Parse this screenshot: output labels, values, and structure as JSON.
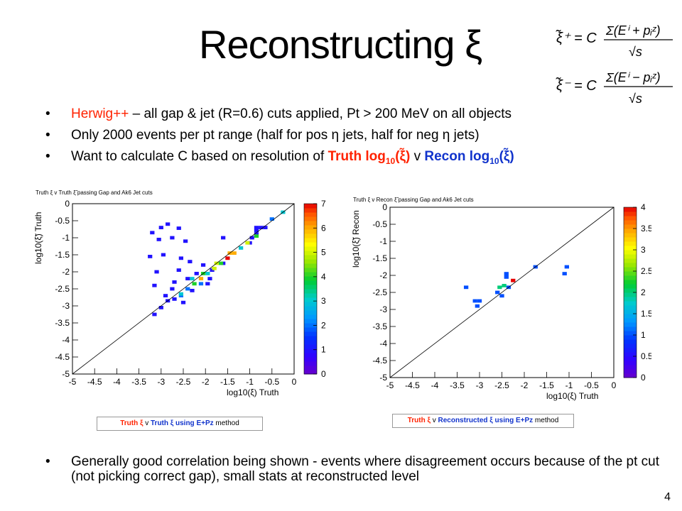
{
  "slide": {
    "title": "Reconstructing ξ",
    "page_number": "4",
    "formula_plus": "ξ̃⁺ = C Σ(Eⁱ + pᵢᶻ) / √s",
    "formula_minus": "ξ̃⁻ = C Σ(Eⁱ − pᵢᶻ) / √s",
    "bullet1_red": "Herwig++",
    "bullet1_rest": " – all gap & jet (R=0.6) cuts applied, Pt > 200 MeV on all objects",
    "bullet2": "Only 2000 events per pt range (half for pos η jets, half for neg η jets)",
    "bullet3_pre": "Want to calculate C based on resolution of ",
    "bullet3_truth": "Truth log",
    "bullet3_sub": "10",
    "bullet3_xi": "(ξ̃)",
    "bullet3_v": " v ",
    "bullet3_recon": "Recon log",
    "bottom_bullet": "Generally good correlation being shown - events where disagreement occurs because of the pt cut (not picking correct gap), small stats at reconstructed level",
    "caption_left": {
      "part1": "Truth ξ",
      "part2": " v ",
      "part3": "Truth ξ using E+Pz",
      "part4": " method"
    },
    "caption_right": {
      "part1": "Truth ξ",
      "part2": " v ",
      "part3": "Reconstructed ξ using E+Pz",
      "part4": " method"
    }
  },
  "chart_data": [
    {
      "type": "heatmap",
      "title": "Truth ξ v Truth ξ̃ passing Gap and Ak6 Jet cuts",
      "xlabel": "log10(ξ) Truth",
      "ylabel": "log10(ξ̃) Truth",
      "xlim": [
        -5,
        0
      ],
      "ylim": [
        -5,
        0
      ],
      "zlim": [
        0,
        7
      ],
      "x_ticks": [
        "-5",
        "-4.5",
        "-4",
        "-3.5",
        "-3",
        "-2.5",
        "-2",
        "-1.5",
        "-1",
        "-0.5",
        "0"
      ],
      "y_ticks": [
        "-5",
        "-4.5",
        "-4",
        "-3.5",
        "-3",
        "-2.5",
        "-2",
        "-1.5",
        "-1",
        "-0.5",
        "0"
      ],
      "z_ticks": [
        "0",
        "1",
        "2",
        "3",
        "4",
        "5",
        "6",
        "7"
      ],
      "diagonal": true,
      "cells": [
        {
          "x": -3.2,
          "y": -0.85,
          "z": 1
        },
        {
          "x": -3.0,
          "y": -0.7,
          "z": 1
        },
        {
          "x": -2.85,
          "y": -0.6,
          "z": 1
        },
        {
          "x": -2.6,
          "y": -0.72,
          "z": 1
        },
        {
          "x": -3.05,
          "y": -1.05,
          "z": 1
        },
        {
          "x": -2.75,
          "y": -1.0,
          "z": 1
        },
        {
          "x": -2.45,
          "y": -1.1,
          "z": 1
        },
        {
          "x": -1.6,
          "y": -1.0,
          "z": 1
        },
        {
          "x": -3.25,
          "y": -1.55,
          "z": 1
        },
        {
          "x": -2.95,
          "y": -1.5,
          "z": 1
        },
        {
          "x": -3.1,
          "y": -2.0,
          "z": 1
        },
        {
          "x": -3.15,
          "y": -2.4,
          "z": 1
        },
        {
          "x": -2.9,
          "y": -2.7,
          "z": 1
        },
        {
          "x": -3.0,
          "y": -3.05,
          "z": 1
        },
        {
          "x": -3.15,
          "y": -3.25,
          "z": 1
        },
        {
          "x": -2.55,
          "y": -1.6,
          "z": 1
        },
        {
          "x": -2.35,
          "y": -1.7,
          "z": 1
        },
        {
          "x": -2.6,
          "y": -1.95,
          "z": 1
        },
        {
          "x": -2.4,
          "y": -2.2,
          "z": 1
        },
        {
          "x": -2.2,
          "y": -2.05,
          "z": 1
        },
        {
          "x": -2.05,
          "y": -1.8,
          "z": 1
        },
        {
          "x": -2.75,
          "y": -2.5,
          "z": 1
        },
        {
          "x": -2.55,
          "y": -2.7,
          "z": 2
        },
        {
          "x": -2.85,
          "y": -2.85,
          "z": 1
        },
        {
          "x": -2.5,
          "y": -2.9,
          "z": 1
        },
        {
          "x": -2.7,
          "y": -2.3,
          "z": 1
        },
        {
          "x": -2.3,
          "y": -2.55,
          "z": 1
        },
        {
          "x": -1.9,
          "y": -2.2,
          "z": 1
        },
        {
          "x": -1.85,
          "y": -1.95,
          "z": 1
        },
        {
          "x": -0.85,
          "y": -0.7,
          "z": 1
        },
        {
          "x": -0.75,
          "y": -0.7,
          "z": 1
        },
        {
          "x": -0.65,
          "y": -0.7,
          "z": 1
        },
        {
          "x": -0.85,
          "y": -0.8,
          "z": 1
        },
        {
          "x": -0.85,
          "y": -0.9,
          "z": 1
        },
        {
          "x": -0.95,
          "y": -1.0,
          "z": 1
        },
        {
          "x": -1.0,
          "y": -1.15,
          "z": 1
        },
        {
          "x": -1.6,
          "y": -1.75,
          "z": 1
        },
        {
          "x": -1.95,
          "y": -2.35,
          "z": 1
        },
        {
          "x": -0.25,
          "y": -0.25,
          "z": 3
        },
        {
          "x": -0.5,
          "y": -0.45,
          "z": 2
        },
        {
          "x": -0.85,
          "y": -0.95,
          "z": 4
        },
        {
          "x": -1.05,
          "y": -1.15,
          "z": 5
        },
        {
          "x": -1.2,
          "y": -1.3,
          "z": 3
        },
        {
          "x": -1.35,
          "y": -1.45,
          "z": 6
        },
        {
          "x": -1.5,
          "y": -1.6,
          "z": 7
        },
        {
          "x": -1.65,
          "y": -1.75,
          "z": 4
        },
        {
          "x": -1.8,
          "y": -1.9,
          "z": 5
        },
        {
          "x": -1.95,
          "y": -2.05,
          "z": 3
        },
        {
          "x": -2.1,
          "y": -2.2,
          "z": 6
        },
        {
          "x": -2.25,
          "y": -2.35,
          "z": 4
        },
        {
          "x": -2.4,
          "y": -2.5,
          "z": 2
        },
        {
          "x": -2.55,
          "y": -2.65,
          "z": 3
        },
        {
          "x": -2.7,
          "y": -2.8,
          "z": 1
        },
        {
          "x": -1.45,
          "y": -1.45,
          "z": 6
        },
        {
          "x": -1.75,
          "y": -1.75,
          "z": 5
        },
        {
          "x": -2.05,
          "y": -2.05,
          "z": 4
        },
        {
          "x": -2.3,
          "y": -2.2,
          "z": 3
        },
        {
          "x": -2.1,
          "y": -2.35,
          "z": 2
        }
      ]
    },
    {
      "type": "heatmap",
      "title": "Truth ξ v Recon ξ̃ passing Gap and Ak6 Jet cuts",
      "xlabel": "log10(ξ) Truth",
      "ylabel": "log10(ξ̃) Recon",
      "xlim": [
        -5,
        0
      ],
      "ylim": [
        -5,
        0
      ],
      "zlim": [
        0,
        4
      ],
      "x_ticks": [
        "-5",
        "-4.5",
        "-4",
        "-3.5",
        "-3",
        "-2.5",
        "-2",
        "-1.5",
        "-1",
        "-0.5",
        "0"
      ],
      "y_ticks": [
        "-5",
        "-4.5",
        "-4",
        "-3.5",
        "-3",
        "-2.5",
        "-2",
        "-1.5",
        "-1",
        "-0.5",
        "0"
      ],
      "z_ticks": [
        "0",
        "0.5",
        "1",
        "1.5",
        "2",
        "2.5",
        "3",
        "3.5",
        "4"
      ],
      "diagonal": true,
      "cells": [
        {
          "x": -3.3,
          "y": -2.35,
          "z": 1
        },
        {
          "x": -3.1,
          "y": -2.75,
          "z": 1
        },
        {
          "x": -3.0,
          "y": -2.75,
          "z": 1
        },
        {
          "x": -3.05,
          "y": -2.9,
          "z": 1
        },
        {
          "x": -2.6,
          "y": -2.5,
          "z": 1
        },
        {
          "x": -2.55,
          "y": -2.35,
          "z": 2
        },
        {
          "x": -2.45,
          "y": -2.3,
          "z": 2
        },
        {
          "x": -2.35,
          "y": -2.35,
          "z": 1
        },
        {
          "x": -2.4,
          "y": -1.95,
          "z": 1
        },
        {
          "x": -2.4,
          "y": -2.05,
          "z": 1
        },
        {
          "x": -2.25,
          "y": -2.15,
          "z": 4
        },
        {
          "x": -2.5,
          "y": -2.6,
          "z": 1
        },
        {
          "x": -1.75,
          "y": -1.75,
          "z": 1
        },
        {
          "x": -1.1,
          "y": -1.95,
          "z": 1
        },
        {
          "x": -1.05,
          "y": -1.75,
          "z": 1
        }
      ]
    }
  ]
}
